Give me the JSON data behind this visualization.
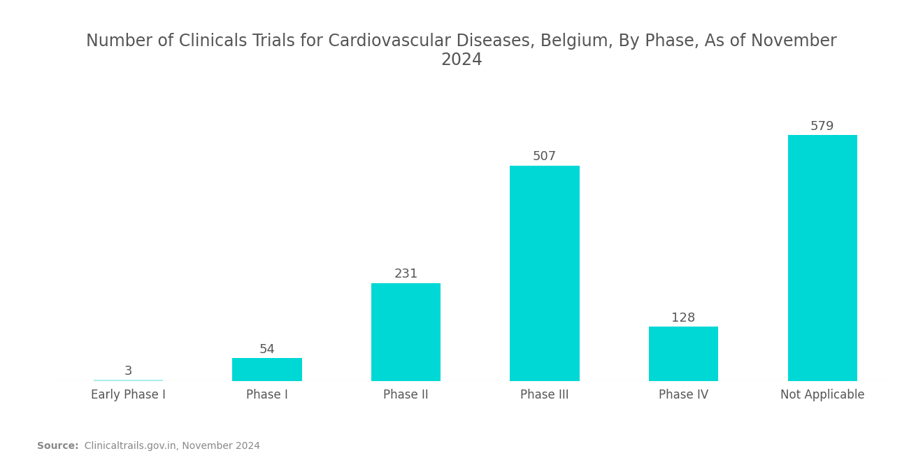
{
  "title": "Number of Clinicals Trials for Cardiovascular Diseases, Belgium, By Phase, As of November\n2024",
  "categories": [
    "Early Phase I",
    "Phase I",
    "Phase II",
    "Phase III",
    "Phase IV",
    "Not Applicable"
  ],
  "values": [
    3,
    54,
    231,
    507,
    128,
    579
  ],
  "bar_color": "#00D8D6",
  "early_phase_color": "#A8EDEB",
  "text_color": "#555555",
  "title_color": "#555555",
  "source_bold": "Source:",
  "source_rest": "  Clinicaltrails.gov.in, November 2024",
  "ylim": [
    0,
    700
  ],
  "bar_width": 0.5,
  "value_fontsize": 13,
  "xlabel_fontsize": 12,
  "title_fontsize": 17,
  "background_color": "#ffffff"
}
